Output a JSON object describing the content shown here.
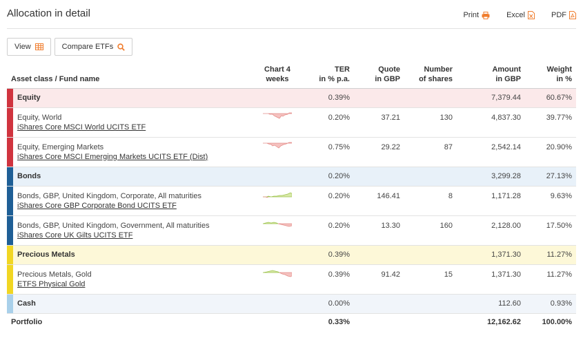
{
  "header": {
    "title": "Allocation in detail",
    "print_label": "Print",
    "excel_label": "Excel",
    "pdf_label": "PDF"
  },
  "toolbar": {
    "view_label": "View",
    "compare_label": "Compare ETFs"
  },
  "columns": {
    "name": "Asset class / Fund name",
    "chart_l1": "Chart 4",
    "chart_l2": "weeks",
    "ter_l1": "TER",
    "ter_l2": "in % p.a.",
    "quote_l1": "Quote",
    "quote_l2": "in GBP",
    "shares_l1": "Number",
    "shares_l2": "of shares",
    "amount_l1": "Amount",
    "amount_l2": "in GBP",
    "weight_l1": "Weight",
    "weight_l2": "in %"
  },
  "colors": {
    "equity": "#d0343f",
    "equity_bg": "#fbe9ea",
    "bonds": "#1f5f96",
    "bonds_bg": "#e8f1f9",
    "precious": "#f1d623",
    "precious_bg": "#fdf8d8",
    "cash": "#a9d0ea",
    "cash_bg": "#f1f5fa",
    "accent": "#f07d2e"
  },
  "rows": {
    "equity": {
      "name": "Equity",
      "ter": "0.39%",
      "amount": "7,379.44",
      "weight": "60.67%"
    },
    "equity_world": {
      "line1": "Equity, World",
      "fund": "iShares Core MSCI World UCITS ETF",
      "ter": "0.20%",
      "quote": "37.21",
      "shares": "130",
      "amount": "4,837.30",
      "weight": "39.77%"
    },
    "equity_em": {
      "line1": "Equity, Emerging Markets",
      "fund": "iShares Core MSCI Emerging Markets UCITS ETF (Dist)",
      "ter": "0.75%",
      "quote": "29.22",
      "shares": "87",
      "amount": "2,542.14",
      "weight": "20.90%"
    },
    "bonds": {
      "name": "Bonds",
      "ter": "0.20%",
      "amount": "3,299.28",
      "weight": "27.13%"
    },
    "bonds_corp": {
      "line1": "Bonds, GBP, United Kingdom, Corporate, All maturities",
      "fund": "iShares Core GBP Corporate Bond UCITS ETF",
      "ter": "0.20%",
      "quote": "146.41",
      "shares": "8",
      "amount": "1,171.28",
      "weight": "9.63%"
    },
    "bonds_gov": {
      "line1": "Bonds, GBP, United Kingdom, Government, All maturities",
      "fund": "iShares Core UK Gilts UCITS ETF",
      "ter": "0.20%",
      "quote": "13.30",
      "shares": "160",
      "amount": "2,128.00",
      "weight": "17.50%"
    },
    "precious": {
      "name": "Precious Metals",
      "ter": "0.39%",
      "amount": "1,371.30",
      "weight": "11.27%"
    },
    "gold": {
      "line1": "Precious Metals, Gold",
      "fund": "ETFS Physical Gold",
      "ter": "0.39%",
      "quote": "91.42",
      "shares": "15",
      "amount": "1,371.30",
      "weight": "11.27%"
    },
    "cash": {
      "name": "Cash",
      "ter": "0.00%",
      "amount": "112.60",
      "weight": "0.93%"
    },
    "portfolio": {
      "name": "Portfolio",
      "ter": "0.33%",
      "amount": "12,162.62",
      "weight": "100.00%"
    }
  },
  "icons": {
    "print": "printer-icon",
    "excel": "excel-file-icon",
    "pdf": "pdf-file-icon",
    "view": "table-grid-icon",
    "compare": "search-icon"
  }
}
